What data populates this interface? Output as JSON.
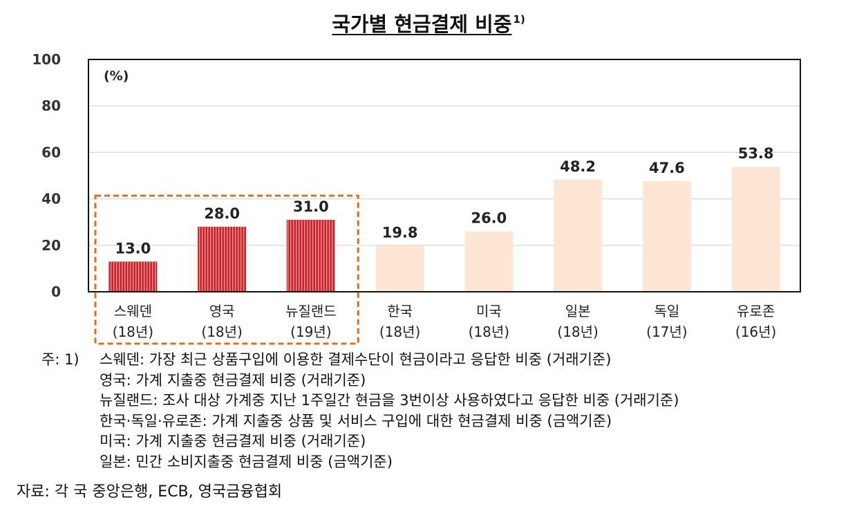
{
  "title": "국가별 현금결제 비중",
  "title_sup": "1)",
  "colors": {
    "highlight": "#d01f26",
    "muted": "#fde6d4",
    "frame": "#111111",
    "grid": "#d8d8d8",
    "dashed_box": "#e06d1d"
  },
  "chart_data": {
    "type": "bar",
    "unit_label": "(%)",
    "ylim": [
      0,
      100
    ],
    "yticks": [
      0,
      20,
      40,
      60,
      80,
      100
    ],
    "grid": true,
    "categories": [
      {
        "name": "스웨덴",
        "year": "(18년)"
      },
      {
        "name": "영국",
        "year": "(18년)"
      },
      {
        "name": "뉴질랜드",
        "year": "(19년)"
      },
      {
        "name": "한국",
        "year": "(18년)"
      },
      {
        "name": "미국",
        "year": "(18년)"
      },
      {
        "name": "일본",
        "year": "(18년)"
      },
      {
        "name": "독일",
        "year": "(17년)"
      },
      {
        "name": "유로존",
        "year": "(16년)"
      }
    ],
    "values": [
      13.0,
      28.0,
      31.0,
      19.8,
      26.0,
      48.2,
      47.6,
      53.8
    ],
    "value_labels": [
      "13.0",
      "28.0",
      "31.0",
      "19.8",
      "26.0",
      "48.2",
      "47.6",
      "53.8"
    ],
    "highlighted": [
      0,
      1,
      2
    ]
  },
  "notes": {
    "lead": "주: 1)",
    "lines": [
      "스웨덴: 가장 최근 상품구입에 이용한 결제수단이 현금이라고 응답한 비중 (거래기준)",
      "영국: 가계 지출중 현금결제 비중 (거래기준)",
      "뉴질랜드: 조사 대상 가계중 지난 1주일간 현금을 3번이상 사용하였다고 응답한 비중 (거래기준)",
      "한국·독일·유로존: 가계 지출중 상품 및 서비스 구입에 대한 현금결제 비중 (금액기준)",
      "미국: 가계 지출중 현금결제 비중 (거래기준)",
      "일본: 민간 소비지출중 현금결제 비중 (금액기준)"
    ]
  },
  "source": "자료: 각 국 중앙은행, ECB, 영국금융협회"
}
